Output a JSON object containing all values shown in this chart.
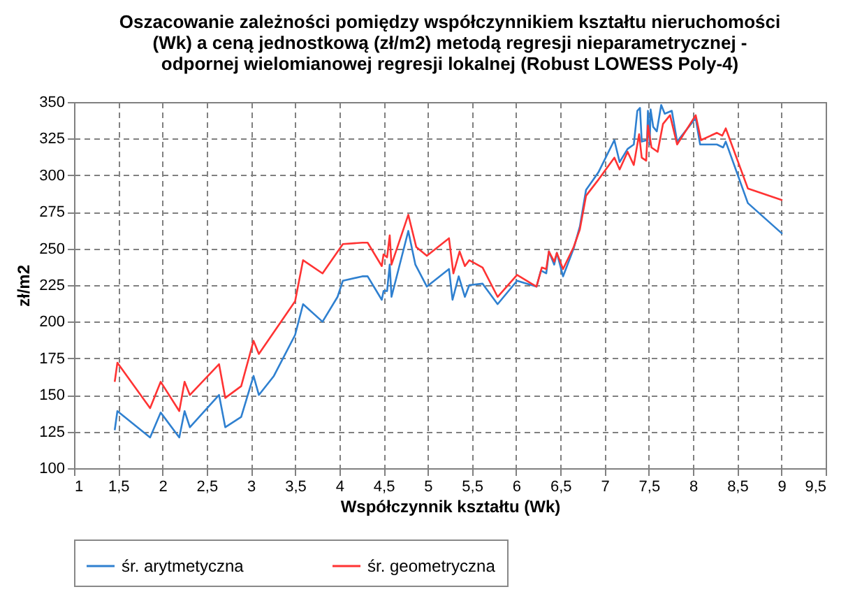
{
  "chart_data": {
    "type": "line",
    "title": "Oszacowanie zależności pomiędzy współczynnikiem kształtu nieruchomości\n(Wk) a ceną jednostkową (zł/m2) metodą regresji nieparametrycznej -\nodpornej wielomianowej regresji lokalnej (Robust LOWESS Poly-4)",
    "xlabel": "Współczynnik  kształtu (Wk)",
    "ylabel": "zł/m2",
    "xlim": [
      1,
      9.5
    ],
    "ylim": [
      100,
      350
    ],
    "xticks": [
      1,
      {
        "value": 1.5,
        "label": "1,5"
      },
      2,
      {
        "value": 2.5,
        "label": "2,5"
      },
      3,
      {
        "value": 3.5,
        "label": "3,5"
      },
      4,
      {
        "value": 4.5,
        "label": "4,5"
      },
      5,
      {
        "value": 5.5,
        "label": "5,5"
      },
      6,
      {
        "value": 6.5,
        "label": "6,5"
      },
      7,
      {
        "value": 7.5,
        "label": "7,5"
      },
      8,
      {
        "value": 8.5,
        "label": "8,5"
      },
      9,
      {
        "value": 9.5,
        "label": "9,5"
      }
    ],
    "yticks": [
      100,
      125,
      150,
      175,
      200,
      225,
      250,
      275,
      300,
      325,
      350
    ],
    "grid": true,
    "legend": "bottom",
    "marker": "none",
    "line_style": "solid",
    "series": [
      {
        "name": "śr. arytmetyczna",
        "color": "#2f80d0",
        "x": [
          1.46,
          1.49,
          1.86,
          1.98,
          2.19,
          2.25,
          2.31,
          2.64,
          2.71,
          2.89,
          3.03,
          3.09,
          3.26,
          3.5,
          3.59,
          3.81,
          3.98,
          4.04,
          4.26,
          4.32,
          4.48,
          4.5,
          4.54,
          4.57,
          4.59,
          4.78,
          4.86,
          4.99,
          5.24,
          5.28,
          5.35,
          5.42,
          5.47,
          5.62,
          5.79,
          6.01,
          6.23,
          6.28,
          6.34,
          6.37,
          6.43,
          6.46,
          6.53,
          6.65,
          6.72,
          6.79,
          6.93,
          7.11,
          7.17,
          7.26,
          7.33,
          7.37,
          7.4,
          7.42,
          7.48,
          7.49,
          7.51,
          7.52,
          7.55,
          7.59,
          7.64,
          7.68,
          7.76,
          7.82,
          8.03,
          8.08,
          8.27,
          8.34,
          8.37,
          8.62,
          9.01
        ],
        "values": [
          126,
          139,
          121,
          138,
          121,
          139,
          128,
          150,
          128,
          135,
          163,
          150,
          163,
          191,
          212,
          200,
          217,
          228,
          231,
          231,
          215,
          221,
          221,
          239,
          217,
          262,
          239,
          224,
          236,
          215,
          231,
          217,
          225,
          226,
          212,
          228,
          224,
          235,
          233,
          248,
          239,
          247,
          231,
          250,
          265,
          290,
          302,
          324,
          309,
          318,
          321,
          344,
          346,
          323,
          324,
          344,
          321,
          345,
          333,
          330,
          348,
          342,
          344,
          323,
          339,
          321,
          321,
          319,
          323,
          281,
          260
        ]
      },
      {
        "name": "śr. geometryczna",
        "color": "#ff3333",
        "x": [
          1.46,
          1.49,
          1.86,
          1.98,
          2.19,
          2.25,
          2.31,
          2.64,
          2.71,
          2.89,
          3.03,
          3.09,
          3.5,
          3.59,
          3.81,
          4.04,
          4.26,
          4.32,
          4.48,
          4.5,
          4.54,
          4.57,
          4.59,
          4.78,
          4.87,
          4.99,
          5.24,
          5.29,
          5.36,
          5.42,
          5.47,
          5.62,
          5.79,
          6.01,
          6.23,
          6.29,
          6.34,
          6.37,
          6.43,
          6.46,
          6.53,
          6.65,
          6.72,
          6.79,
          6.93,
          7.11,
          7.17,
          7.26,
          7.33,
          7.39,
          7.42,
          7.47,
          7.49,
          7.53,
          7.6,
          7.66,
          7.74,
          7.82,
          8.03,
          8.09,
          8.27,
          8.33,
          8.37,
          8.62,
          9.01
        ],
        "values": [
          159,
          172,
          141,
          159,
          139,
          159,
          150,
          171,
          148,
          156,
          187,
          178,
          214,
          242,
          233,
          253,
          254,
          254,
          238,
          246,
          244,
          259,
          239,
          273,
          251,
          245,
          257,
          233,
          248,
          238,
          242,
          237,
          217,
          232,
          224,
          237,
          236,
          248,
          241,
          247,
          236,
          251,
          263,
          286,
          297,
          312,
          304,
          316,
          307,
          328,
          312,
          310,
          334,
          319,
          316,
          335,
          341,
          321,
          341,
          324,
          329,
          327,
          332,
          291,
          283
        ]
      }
    ]
  }
}
